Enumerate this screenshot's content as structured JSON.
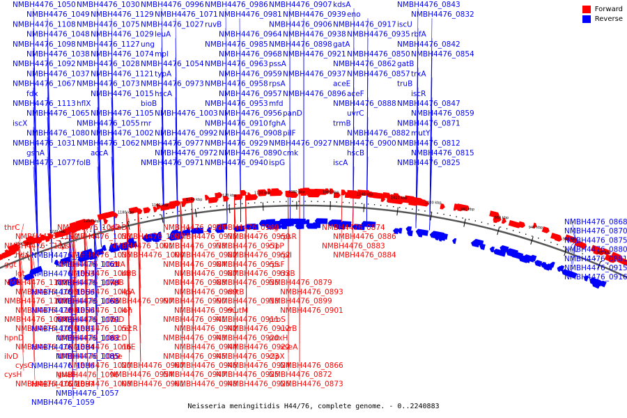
{
  "caption": "Neisseria meningitidis H44/76, complete genome. - 0..2240883",
  "legend": [
    {
      "label": "Forward",
      "color": "#ff0000"
    },
    {
      "label": "Reverse",
      "color": "#0000ff"
    }
  ],
  "colors": {
    "forward": "#ff0000",
    "reverse": "#0000ff",
    "backbone": "#555555"
  },
  "ticks": [
    "1240 kbp",
    "1220 kbp",
    "1200 kbp",
    "1180 kbp",
    "1160 kbp",
    "1140 kbp",
    "1120 kbp",
    "1100 kbp",
    "1080 kbp",
    "1060 kbp",
    "1040 kbp",
    "1020 kbp",
    "1000 kbp",
    "980 kbp",
    "960 kbp",
    "940 kbp",
    "920 kbp",
    "900 kbp"
  ],
  "reverse_labels": [
    {
      "t": "NMBH4476_1050"
    },
    {
      "t": "NMBH4476_1049"
    },
    {
      "t": "NMBH4476_1108"
    },
    {
      "t": "NMBH4476_1048"
    },
    {
      "t": "NMBH4476_1098"
    },
    {
      "t": "NMBH4476_1038"
    },
    {
      "t": "NMBH4476_1092"
    },
    {
      "t": "NMBH4476_1037"
    },
    {
      "t": "NMBH4476_1067"
    },
    {
      "t": "fdx"
    },
    {
      "t": "NMBH4476_1113"
    },
    {
      "t": "NMBH4476_1065"
    },
    {
      "t": "iscX"
    },
    {
      "t": "NMBH4476_1080"
    },
    {
      "t": "NMBH4476_1031"
    },
    {
      "t": "gshA"
    },
    {
      "t": "NMBH4476_1077"
    },
    {
      "t": "NMBH4476_1030"
    },
    {
      "t": "NMBH4476_1129"
    },
    {
      "t": "NMBH4476_1075"
    },
    {
      "t": "NMBH4476_1029"
    },
    {
      "t": "NMBH4476_1127"
    },
    {
      "t": "NMBH4476_1074"
    },
    {
      "t": "NMBH4476_1028"
    },
    {
      "t": "NMBH4476_1121"
    },
    {
      "t": "NMBH4476_1073"
    },
    {
      "t": "NMBH4476_1015"
    },
    {
      "t": "hflX"
    },
    {
      "t": "NMBH4476_1105"
    },
    {
      "t": "NMBH4476_1055"
    },
    {
      "t": "NMBH4476_1002"
    },
    {
      "t": "NMBH4476_1062"
    },
    {
      "t": "accA"
    },
    {
      "t": "folB"
    },
    {
      "t": "NMBH4476_0996"
    },
    {
      "t": "NMBH4476_1071"
    },
    {
      "t": "NMBH4476_1027"
    },
    {
      "t": "leuA"
    },
    {
      "t": "ung"
    },
    {
      "t": "mpl"
    },
    {
      "t": "NMBH4476_1054"
    },
    {
      "t": "typA"
    },
    {
      "t": "NMBH4476_0973"
    },
    {
      "t": "hscA"
    },
    {
      "t": "bioB"
    },
    {
      "t": "NMBH4476_1003"
    },
    {
      "t": "rnr"
    },
    {
      "t": "NMBH4476_0992"
    },
    {
      "t": "NMBH4476_0977"
    },
    {
      "t": "NMBH4476_0972"
    },
    {
      "t": "NMBH4476_0971"
    },
    {
      "t": "NMBH4476_0986"
    },
    {
      "t": "NMBH4476_0981"
    },
    {
      "t": "ruvB"
    },
    {
      "t": "NMBH4476_0964"
    },
    {
      "t": "NMBH4476_0985"
    },
    {
      "t": "NMBH4476_0968"
    },
    {
      "t": "NMBH4476_0963"
    },
    {
      "t": "NMBH4476_0959"
    },
    {
      "t": "NMBH4476_0958"
    },
    {
      "t": "NMBH4476_0957"
    },
    {
      "t": "NMBH4476_0953"
    },
    {
      "t": "NMBH4476_0956"
    },
    {
      "t": "NMBH4476_0910"
    },
    {
      "t": "NMBH4476_0908"
    },
    {
      "t": "NMBH4476_0929"
    },
    {
      "t": "NMBH4476_0890"
    },
    {
      "t": "NMBH4476_0940"
    },
    {
      "t": "NMBH4476_0907"
    },
    {
      "t": "NMBH4476_0939"
    },
    {
      "t": "NMBH4476_0906"
    },
    {
      "t": "NMBH4476_0938"
    },
    {
      "t": "NMBH4476_0898"
    },
    {
      "t": "NMBH4476_0921"
    },
    {
      "t": "pssA"
    },
    {
      "t": "NMBH4476_0937"
    },
    {
      "t": "rpsA"
    },
    {
      "t": "NMBH4476_0896"
    },
    {
      "t": "mfd"
    },
    {
      "t": "panD"
    },
    {
      "t": "fghA"
    },
    {
      "t": "pilF"
    },
    {
      "t": "NMBH4476_0927"
    },
    {
      "t": "cmk"
    },
    {
      "t": "ispG"
    },
    {
      "t": "kdsA"
    },
    {
      "t": "eno"
    },
    {
      "t": "NMBH4476_0917"
    },
    {
      "t": "NMBH4476_0935"
    },
    {
      "t": "gatA"
    },
    {
      "t": "NMBH4476_0850"
    },
    {
      "t": "NMBH4476_0862"
    },
    {
      "t": "NMBH4476_0857"
    },
    {
      "t": "aceE"
    },
    {
      "t": "aceF"
    },
    {
      "t": "NMBH4476_0888"
    },
    {
      "t": "uvrC"
    },
    {
      "t": "trmB"
    },
    {
      "t": "NMBH4476_0882"
    },
    {
      "t": "NMBH4476_0900"
    },
    {
      "t": "hscB"
    },
    {
      "t": "iscA"
    },
    {
      "t": "NMBH4476_0843"
    },
    {
      "t": "NMBH4476_0832"
    },
    {
      "t": "iscU"
    },
    {
      "t": "rbfA"
    },
    {
      "t": "NMBH4476_0842"
    },
    {
      "t": "NMBH4476_0854"
    },
    {
      "t": "gatB"
    },
    {
      "t": "trxA"
    },
    {
      "t": "truB"
    },
    {
      "t": "iscR"
    },
    {
      "t": "NMBH4476_0847"
    },
    {
      "t": "NMBH4476_0859"
    },
    {
      "t": "NMBH4476_0871"
    },
    {
      "t": "mutY"
    },
    {
      "t": "NMBH4476_0812"
    },
    {
      "t": "NMBH4476_0815"
    },
    {
      "t": "NMBH4476_0825"
    }
  ],
  "forward_labels": [
    {
      "t": "thrC"
    },
    {
      "t": "NMBH4476_1110"
    },
    {
      "t": "NMBH4476_1111"
    },
    {
      "t": "hda"
    },
    {
      "t": "ggt"
    },
    {
      "t": "lgt"
    },
    {
      "t": "NMBH4476_1112"
    },
    {
      "t": "NMBH4476_1093"
    },
    {
      "t": "NMBH4476_1103"
    },
    {
      "t": "NMBH4476_1104"
    },
    {
      "t": "NMBH4476_1094"
    },
    {
      "t": "NMBH4476_1076"
    },
    {
      "t": "hpnD"
    },
    {
      "t": "NMBH4476_1041"
    },
    {
      "t": "ilvD"
    },
    {
      "t": "cysG"
    },
    {
      "t": "cysH"
    },
    {
      "t": "NMBH4476_1021"
    },
    {
      "t": "NMBH4476_1042"
    },
    {
      "t": "NMBH4476_1033"
    },
    {
      "t": "cysI"
    },
    {
      "t": "NMBH4476_1035"
    },
    {
      "t": "NMBH4476_1024"
    },
    {
      "t": "NMBH4476_1043"
    },
    {
      "t": "NMBH4476_1044"
    },
    {
      "t": "NMBH4476_1045"
    },
    {
      "t": "NMBH4476_1046"
    },
    {
      "t": "NMBH4476_1047"
    },
    {
      "t": "NMBH4476_1051"
    },
    {
      "t": "NMBH4476_1052"
    },
    {
      "t": "NMBH4476_1082"
    },
    {
      "t": "NMBH4476_1016"
    },
    {
      "t": "NMBH4476_1019"
    },
    {
      "t": "NMBH4476_1020"
    },
    {
      "t": "guaB"
    },
    {
      "t": "NMBH4476_1008"
    },
    {
      "t": "glnD"
    },
    {
      "t": "NMBH4476_1006"
    },
    {
      "t": "NMBH4476_1001"
    },
    {
      "t": "NMBH4476_1000"
    },
    {
      "t": "bfrA"
    },
    {
      "t": "bfrB"
    },
    {
      "t": "lipB"
    },
    {
      "t": "lipA"
    },
    {
      "t": "NMBH4476_0997"
    },
    {
      "t": "lon"
    },
    {
      "t": "lolD"
    },
    {
      "t": "recR"
    },
    {
      "t": "recD"
    },
    {
      "t": "ribE"
    },
    {
      "t": "rpe"
    },
    {
      "t": "NMBH4476_0967"
    },
    {
      "t": "NMBH4476_0954"
    },
    {
      "t": "NMBH4476_0961"
    },
    {
      "t": "NMBH4476_0974"
    },
    {
      "t": "NMBH4476_0975"
    },
    {
      "t": "NMBH4476_0978"
    },
    {
      "t": "NMBH4476_0982"
    },
    {
      "t": "NMBH4476_0984"
    },
    {
      "t": "NMBH4476_0987"
    },
    {
      "t": "NMBH4476_0988"
    },
    {
      "t": "NMBH4476_0989"
    },
    {
      "t": "NMBH4476_0990"
    },
    {
      "t": "NMBH4476_0991"
    },
    {
      "t": "NMBH4476_0941"
    },
    {
      "t": "NMBH4476_0942"
    },
    {
      "t": "NMBH4476_0943"
    },
    {
      "t": "NMBH4476_0944"
    },
    {
      "t": "NMBH4476_0945"
    },
    {
      "t": "NMBH4476_0946"
    },
    {
      "t": "NMBH4476_0947"
    },
    {
      "t": "NMBH4476_0948"
    },
    {
      "t": "NMBH4476_0949"
    },
    {
      "t": "NMBH4476_0950"
    },
    {
      "t": "NMBH4476_0951"
    },
    {
      "t": "NMBH4476_0952"
    },
    {
      "t": "NMBH4476_0955"
    },
    {
      "t": "NMBH4476_0933"
    },
    {
      "t": "NMBH4476_0936"
    },
    {
      "t": "mltB"
    },
    {
      "t": "NMBH4476_0918"
    },
    {
      "t": "mutM"
    },
    {
      "t": "NMBH4476_0911"
    },
    {
      "t": "NMBH4476_0912"
    },
    {
      "t": "NMBH4476_0920"
    },
    {
      "t": "NMBH4476_0922"
    },
    {
      "t": "NMBH4476_0923"
    },
    {
      "t": "NMBH4476_0924"
    },
    {
      "t": "NMBH4476_0925"
    },
    {
      "t": "NMBH4476_0926"
    },
    {
      "t": "tig"
    },
    {
      "t": "rpsR"
    },
    {
      "t": "clpP"
    },
    {
      "t": "rplI"
    },
    {
      "t": "rpsF"
    },
    {
      "t": "trxB"
    },
    {
      "t": "NMBH4476_0879"
    },
    {
      "t": "NMBH4476_0893"
    },
    {
      "t": "NMBH4476_0899"
    },
    {
      "t": "NMBH4476_0901"
    },
    {
      "t": "proS"
    },
    {
      "t": "uvrB"
    },
    {
      "t": "pdxH"
    },
    {
      "t": "xseA"
    },
    {
      "t": "clpX"
    },
    {
      "t": "NMBH4476_0866"
    },
    {
      "t": "NMBH4476_0872"
    },
    {
      "t": "NMBH4476_0873"
    },
    {
      "t": "NMBH4476_0874"
    },
    {
      "t": "NMBH4476_0886"
    },
    {
      "t": "NMBH4476_0883"
    },
    {
      "t": "NMBH4476_0884"
    }
  ],
  "mixed_labels": [
    {
      "t": "NMBH4476_1064",
      "strand": "reverse"
    },
    {
      "t": "NMBH4476_1061",
      "strand": "reverse"
    },
    {
      "t": "NMBH4476_1053",
      "strand": "reverse"
    },
    {
      "t": "NMBH4476_1078",
      "strand": "reverse"
    },
    {
      "t": "NMBH4476_1066",
      "strand": "reverse"
    },
    {
      "t": "NMBH4476_1068",
      "strand": "reverse"
    },
    {
      "t": "NMBH4476_1056",
      "strand": "reverse"
    },
    {
      "t": "NMBH4476_1079",
      "strand": "reverse"
    },
    {
      "t": "NMBH4476_1081",
      "strand": "reverse"
    },
    {
      "t": "NMBH4476_1083",
      "strand": "reverse"
    },
    {
      "t": "NMBH4476_1084",
      "strand": "reverse"
    },
    {
      "t": "NMBH4476_1085",
      "strand": "reverse"
    },
    {
      "t": "NMBH4476_1086",
      "strand": "reverse"
    },
    {
      "t": "NMBH4476_1096",
      "strand": "forward"
    },
    {
      "t": "NMBH4476_1097",
      "strand": "forward"
    },
    {
      "t": "NMBH4476_1057",
      "strand": "reverse"
    },
    {
      "t": "NMBH4476_1059",
      "strand": "reverse"
    },
    {
      "t": "NMBH4476_0868",
      "strand": "reverse"
    },
    {
      "t": "NMBH4476_0870",
      "strand": "reverse"
    },
    {
      "t": "NMBH4476_0875",
      "strand": "reverse"
    },
    {
      "t": "NMBH4476_0880",
      "strand": "reverse"
    },
    {
      "t": "NMBH4476_0881",
      "strand": "reverse"
    },
    {
      "t": "NMBH4476_0915",
      "strand": "reverse"
    },
    {
      "t": "NMBH4476_0916",
      "strand": "reverse"
    }
  ]
}
